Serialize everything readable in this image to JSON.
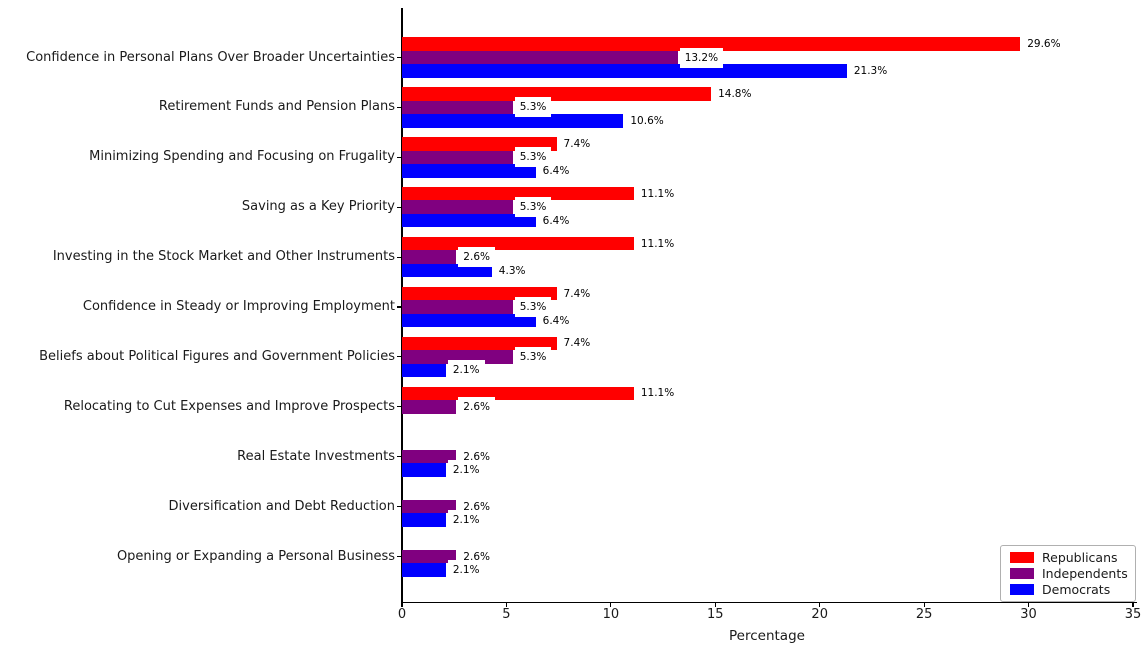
{
  "chart_data": {
    "type": "bar",
    "orientation": "horizontal",
    "title": "",
    "xlabel": "Percentage",
    "ylabel": "",
    "xlim": [
      0,
      35
    ],
    "xticks": [
      0,
      5,
      10,
      15,
      20,
      25,
      30,
      35
    ],
    "grid": false,
    "legend_position": "lower right",
    "value_label_format": "{value}%",
    "categories": [
      "Confidence in Personal Plans Over Broader Uncertainties",
      "Retirement Funds and Pension Plans",
      "Minimizing Spending and Focusing on Frugality",
      "Saving as a Key Priority",
      "Investing in the Stock Market and Other Instruments",
      "Confidence in Steady or Improving Employment",
      "Beliefs about Political Figures and Government Policies",
      "Relocating to Cut Expenses and Improve Prospects",
      "Real Estate Investments",
      "Diversification and Debt Reduction",
      "Opening or Expanding a Personal Business"
    ],
    "series": [
      {
        "name": "Republicans",
        "color": "#ff0000",
        "values": [
          29.6,
          14.8,
          7.4,
          11.1,
          11.1,
          7.4,
          7.4,
          11.1,
          0,
          0,
          0
        ]
      },
      {
        "name": "Independents",
        "color": "#800080",
        "values": [
          13.2,
          5.3,
          5.3,
          5.3,
          2.6,
          5.3,
          5.3,
          2.6,
          2.6,
          2.6,
          2.6
        ]
      },
      {
        "name": "Democrats",
        "color": "#0000ff",
        "values": [
          21.3,
          10.6,
          6.4,
          6.4,
          4.3,
          6.4,
          2.1,
          0,
          2.1,
          2.1,
          2.1
        ]
      }
    ]
  }
}
